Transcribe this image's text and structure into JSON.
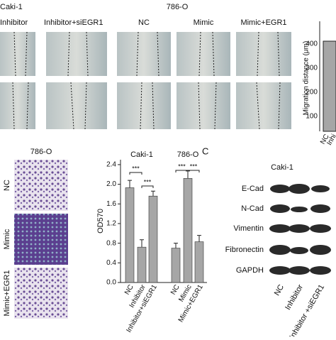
{
  "panel_a": {
    "left_group": "Caki-1",
    "left_labels": [
      "Inhibitor",
      "Inhibitor+siEGR1"
    ],
    "right_group": "786-O",
    "right_labels": [
      "NC",
      "Mimic",
      "Mimic+EGR1"
    ],
    "side_axis_label": "Migration distance (μm)",
    "side_ticks": [
      "400",
      "300",
      "200",
      "100"
    ],
    "side_categories": [
      "NC",
      "Inhi"
    ]
  },
  "panel_b": {
    "title": "786-O",
    "rows": [
      "NC",
      "Mimic",
      "Mimic+EGR1"
    ]
  },
  "chart_data": {
    "type": "bar",
    "titles": [
      "Caki-1",
      "786-O"
    ],
    "y_label": "OD570",
    "categories": [
      "NC",
      "Inhibitor",
      "Inhibitor+siEGR1",
      "NC",
      "Mimic",
      "Mimic+EGR1"
    ],
    "values": [
      1.93,
      0.72,
      1.76,
      0.7,
      2.12,
      0.83
    ],
    "errors": [
      0.15,
      0.15,
      0.1,
      0.1,
      0.15,
      0.13
    ],
    "color": "#a6a6a6",
    "ylim": [
      0,
      2.5
    ],
    "yticks": [
      {
        "value": 0,
        "label": "0.0"
      },
      {
        "value": 0.4,
        "label": "0.4"
      },
      {
        "value": 0.8,
        "label": "0.8"
      },
      {
        "value": 1.2,
        "label": "1.2"
      },
      {
        "value": 1.6,
        "label": "1.6"
      },
      {
        "value": 2,
        "label": "2.0"
      },
      {
        "value": 2.4,
        "label": "2.4"
      }
    ],
    "annotations": [
      "***",
      "***",
      "***",
      "***"
    ]
  },
  "panel_c": {
    "letter": "C",
    "title": "Caki-1",
    "proteins": [
      "E-Cad",
      "N-Cad",
      "Vimentin",
      "Fibronectin",
      "GAPDH"
    ],
    "lanes": [
      "NC",
      "Inhibitor",
      "Inhibitor +siEGR1"
    ]
  }
}
